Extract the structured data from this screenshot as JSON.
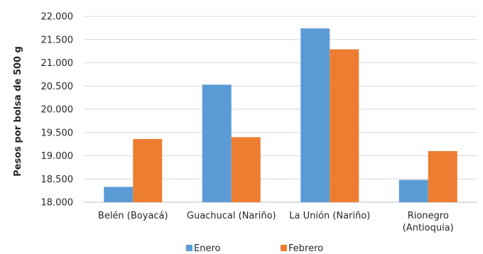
{
  "chart_data": {
    "type": "bar",
    "categories": [
      [
        "Belén (Boyacá)"
      ],
      [
        "Guachucal (Nariño)"
      ],
      [
        "La Unión (Nariño)"
      ],
      [
        "Rionegro",
        "(Antioquia)"
      ]
    ],
    "series": [
      {
        "name": "Enero",
        "color": "#5b9bd5",
        "values": [
          18330,
          20530,
          21740,
          18480
        ]
      },
      {
        "name": "Febrero",
        "color": "#ed7d31",
        "values": [
          19360,
          19400,
          21290,
          19100
        ]
      }
    ],
    "ylabel": "Pesos por bolsa de 500 g",
    "ylim": [
      18000,
      22000
    ],
    "yticks": [
      "18.000",
      "18.500",
      "19.000",
      "19.500",
      "20.000",
      "20.500",
      "21.000",
      "21.500",
      "22.000"
    ],
    "grid": true,
    "legend": "bottom"
  }
}
